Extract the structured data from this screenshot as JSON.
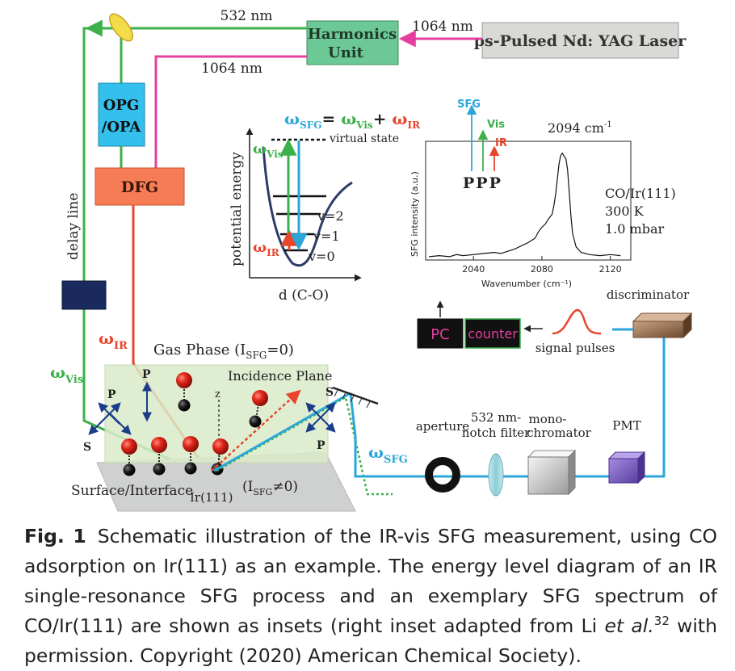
{
  "diagram": {
    "laser_label": "ps-Pulsed Nd: YAG Laser",
    "harmonics_line1": "Harmonics",
    "harmonics_line2": "Unit",
    "beam_532": "532 nm",
    "beam_1064_top": "1064 nm",
    "beam_1064_mid": "1064 nm",
    "opg_line1": "OPG",
    "opg_line2": "/OPA",
    "dfg": "DFG",
    "delay_line": "delay line",
    "omega_ir": "ω",
    "omega_ir_sub": "IR",
    "omega_vis": "ω",
    "omega_vis_sub": "Vis",
    "omega_sfg": "ω",
    "omega_sfg_sub": "SFG",
    "gas_phase_pre": "Gas Phase (I",
    "gas_phase_sub": "SFG",
    "gas_phase_post": "=0)",
    "incidence_plane": "Incidence Plane",
    "surface_interface": "Surface/Interface",
    "ir111": "Ir(111)",
    "isfg_pre": "(I",
    "isfg_sub": "SFG",
    "isfg_post": "≠0)",
    "z_axis": "z",
    "pol_p1": "P",
    "pol_s1": "S",
    "pol_p2": "P",
    "pol_s2": "S",
    "pol_p3": "P",
    "aperture": "aperture",
    "notch_line1": "532 nm-",
    "notch_line2": "notch filter",
    "mono_line1": "mono-",
    "mono_line2": "chromator",
    "pmt": "PMT",
    "discriminator": "discriminator",
    "signal_pulses": "signal pulses",
    "pc": "PC",
    "counter": "counter"
  },
  "energy_inset": {
    "equation_w1": "ω",
    "equation_s1": "SFG",
    "equation_eq": "= ",
    "equation_w2": "ω",
    "equation_s2": "Vis",
    "equation_plus": "+ ",
    "equation_w3": "ω",
    "equation_s3": "IR",
    "virtual_state": "virtual state",
    "ylabel": "potential energy",
    "xlabel": "d (C-O)",
    "v2": "v=2",
    "v1": "v=1",
    "v0": "v=0",
    "w_vis": "ω",
    "w_vis_sub": "Vis",
    "w_ir": "ω",
    "w_ir_sub": "IR"
  },
  "chart_data": {
    "type": "line",
    "xlabel": "Wavenumber (cm⁻¹)",
    "ylabel": "SFG intensity (a.u.)",
    "xticks": [
      2040,
      2080,
      2120
    ],
    "xlim": [
      2012,
      2132
    ],
    "ylim": [
      0,
      1
    ],
    "peak_label": "2094 cm",
    "peak_label_sup": "-1",
    "polarization": "PPP",
    "legend_sfg": "SFG",
    "legend_vis": "Vis",
    "legend_ir": "IR",
    "sample_line1": "CO/Ir(111)",
    "sample_line2": "300 K",
    "sample_line3": "1.0 mbar",
    "series": [
      {
        "x": [
          2014,
          2020,
          2026,
          2030,
          2034,
          2040,
          2046,
          2052,
          2056,
          2060,
          2064,
          2068,
          2072,
          2076,
          2078,
          2080,
          2082,
          2084,
          2086,
          2087,
          2088,
          2089,
          2090,
          2091,
          2092,
          2093,
          2094,
          2095,
          2096,
          2097,
          2098,
          2100,
          2103,
          2108,
          2114,
          2120,
          2126
        ],
        "y": [
          0.03,
          0.04,
          0.03,
          0.05,
          0.04,
          0.05,
          0.06,
          0.07,
          0.06,
          0.08,
          0.1,
          0.13,
          0.16,
          0.2,
          0.26,
          0.3,
          0.33,
          0.38,
          0.42,
          0.5,
          0.6,
          0.74,
          0.88,
          0.96,
          0.98,
          0.95,
          0.93,
          0.83,
          0.62,
          0.4,
          0.24,
          0.12,
          0.07,
          0.05,
          0.04,
          0.05,
          0.04
        ]
      }
    ]
  },
  "caption": {
    "fig_label": "Fig. 1",
    "text_before_italic": "Schematic illustration of the IR-vis SFG measurement, using CO adsorption on Ir(111) as an example. The energy level diagram of an IR single-resonance SFG process and an exemplary SFG spectrum of CO/Ir(111) are shown as insets (right inset adapted from Li ",
    "italic": "et al.",
    "superscript": "32",
    "text_after": " with permission. Copyright (2020) American Chemical Society)."
  },
  "colors": {
    "green_beam": "#3cb04a",
    "ir_beam": "#e8452c",
    "sfg_beam": "#2aa7d8",
    "pink_beam": "#e63fa0",
    "harmonics_box": "#6cc895",
    "opg_box": "#33c0ec",
    "dfg_box": "#f57c54",
    "delay_box": "#1a2a5e",
    "gas_phase_box": "#d9ebc9",
    "polarization_arrows": "#1a3d8a"
  }
}
